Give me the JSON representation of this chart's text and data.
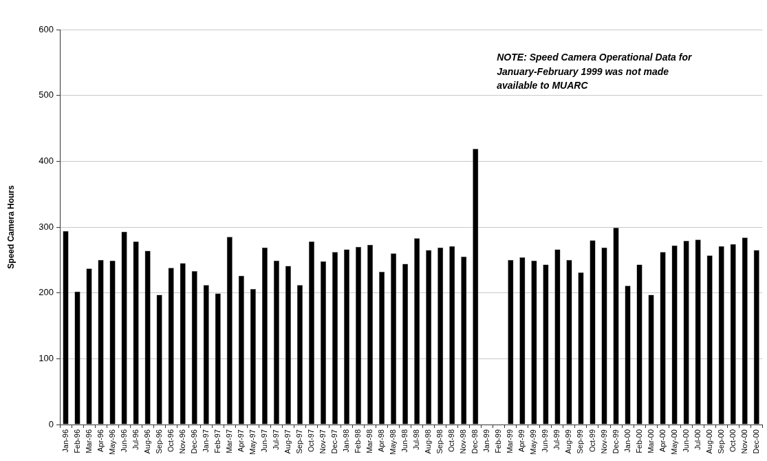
{
  "chart_data": {
    "type": "bar",
    "ylabel": "Speed Camera Hours",
    "categories": [
      "Jan-96",
      "Feb-96",
      "Mar-96",
      "Apr-96",
      "May-96",
      "Jun-96",
      "Jul-96",
      "Aug-96",
      "Sep-96",
      "Oct-96",
      "Nov-96",
      "Dec-96",
      "Jan-97",
      "Feb-97",
      "Mar-97",
      "Apr-97",
      "May-97",
      "Jun-97",
      "Jul-97",
      "Aug-97",
      "Sep-97",
      "Oct-97",
      "Nov-97",
      "Dec-97",
      "Jan-98",
      "Feb-98",
      "Mar-98",
      "Apr-98",
      "May-98",
      "Jun-98",
      "Jul-98",
      "Aug-98",
      "Sep-98",
      "Oct-98",
      "Nov-98",
      "Dec-98",
      "Jan-99",
      "Feb-99",
      "Mar-99",
      "Apr-99",
      "May-99",
      "Jun-99",
      "Jul-99",
      "Aug-99",
      "Sep-99",
      "Oct-99",
      "Nov-99",
      "Dec-99",
      "Jan-00",
      "Feb-00",
      "Mar-00",
      "Apr-00",
      "May-00",
      "Jun-00",
      "Jul-00",
      "Aug-00",
      "Sep-00",
      "Oct-00",
      "Nov-00",
      "Dec-00"
    ],
    "values": [
      294,
      202,
      237,
      250,
      249,
      293,
      278,
      264,
      197,
      238,
      245,
      233,
      212,
      199,
      285,
      226,
      206,
      269,
      249,
      241,
      212,
      278,
      248,
      262,
      266,
      270,
      273,
      232,
      260,
      244,
      283,
      265,
      269,
      271,
      255,
      419,
      null,
      null,
      250,
      254,
      249,
      243,
      266,
      250,
      231,
      280,
      269,
      299,
      211,
      243,
      197,
      262,
      272,
      279,
      281,
      257,
      271,
      274,
      284,
      265
    ],
    "color": "#000000",
    "ylim": [
      0,
      600
    ],
    "yticks": [
      0,
      100,
      200,
      300,
      400,
      500,
      600
    ],
    "grid": "y",
    "annotations": [
      "NOTE: Speed Camera Operational Data for January-February 1999 was not made available to MUARC"
    ]
  }
}
